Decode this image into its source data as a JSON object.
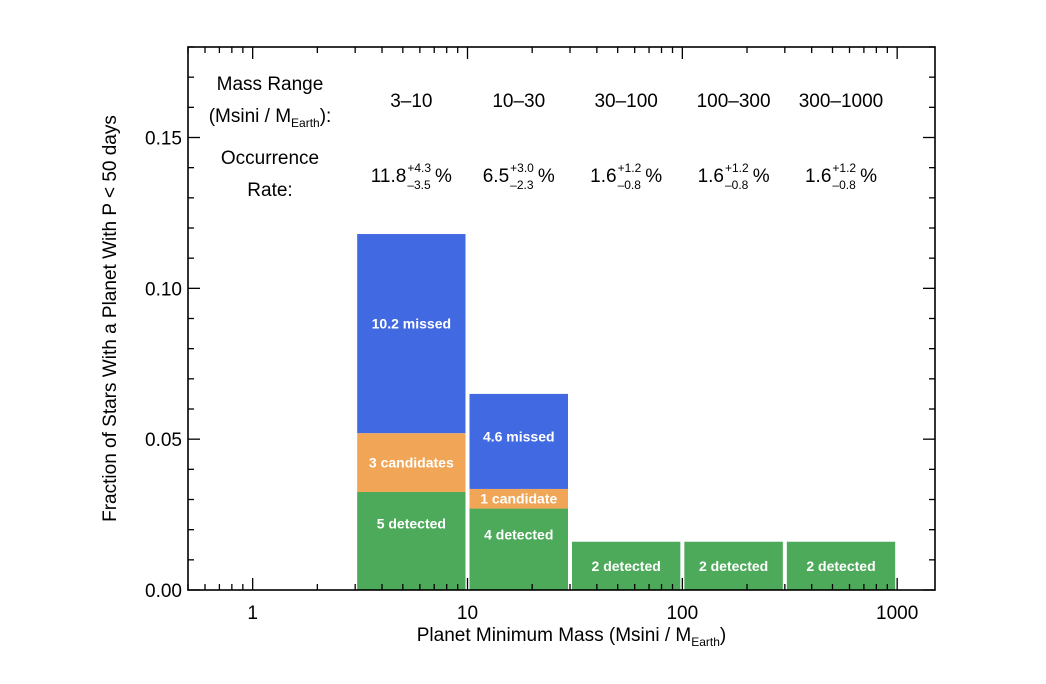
{
  "chart_data": {
    "type": "bar",
    "xscale": "log",
    "xlim": [
      0.5,
      1500
    ],
    "ylim": [
      0,
      0.18
    ],
    "xticks": [
      1,
      10,
      100,
      1000
    ],
    "xtick_labels": [
      "1",
      "10",
      "100",
      "1000"
    ],
    "yticks": [
      0,
      0.05,
      0.1,
      0.15
    ],
    "ytick_labels": [
      "0.00",
      "0.05",
      "0.10",
      "0.15"
    ],
    "xlabel": "Planet Minimum Mass  (Msini / M",
    "xlabel_sub": "Earth",
    "xlabel_end": ")",
    "ylabel": "Fraction of Stars With a Planet With P < 50 days",
    "header": {
      "mass_range_line1": "Mass Range",
      "mass_range_line2": "(Msini / M",
      "mass_range_sub": "Earth",
      "mass_range_end": "):",
      "occurrence_line1": "Occurrence",
      "occurrence_line2": "Rate:"
    },
    "series": [
      {
        "name": "detected",
        "color": "#4daa5a"
      },
      {
        "name": "candidates",
        "color": "#f0a656"
      },
      {
        "name": "missed",
        "color": "#4169e1"
      }
    ],
    "bins": [
      {
        "range_label": "3–10",
        "x0": 3,
        "x1": 10,
        "rate": "11.8",
        "rate_plus": "+4.3",
        "rate_minus": "–3.5",
        "pct": "%",
        "segments": [
          {
            "series": "detected",
            "y0": 0,
            "y1": 0.0325,
            "label": "5 detected"
          },
          {
            "series": "candidates",
            "y0": 0.0325,
            "y1": 0.052,
            "label": "3 candidates"
          },
          {
            "series": "missed",
            "y0": 0.052,
            "y1": 0.118,
            "label": "10.2 missed"
          }
        ]
      },
      {
        "range_label": "10–30",
        "x0": 10,
        "x1": 30,
        "rate": "6.5",
        "rate_plus": "+3.0",
        "rate_minus": "–2.3",
        "pct": "%",
        "segments": [
          {
            "series": "detected",
            "y0": 0,
            "y1": 0.027,
            "label": "4 detected"
          },
          {
            "series": "candidates",
            "y0": 0.027,
            "y1": 0.0335,
            "label": "1 candidate"
          },
          {
            "series": "missed",
            "y0": 0.0335,
            "y1": 0.065,
            "label": "4.6 missed"
          }
        ]
      },
      {
        "range_label": "30–100",
        "x0": 30,
        "x1": 100,
        "rate": "1.6",
        "rate_plus": "+1.2",
        "rate_minus": "–0.8",
        "pct": "%",
        "segments": [
          {
            "series": "detected",
            "y0": 0,
            "y1": 0.016,
            "label": "2 detected"
          }
        ]
      },
      {
        "range_label": "100–300",
        "x0": 100,
        "x1": 300,
        "rate": "1.6",
        "rate_plus": "+1.2",
        "rate_minus": "–0.8",
        "pct": "%",
        "segments": [
          {
            "series": "detected",
            "y0": 0,
            "y1": 0.016,
            "label": "2 detected"
          }
        ]
      },
      {
        "range_label": "300–1000",
        "x0": 300,
        "x1": 1000,
        "rate": "1.6",
        "rate_plus": "+1.2",
        "rate_minus": "–0.8",
        "pct": "%",
        "segments": [
          {
            "series": "detected",
            "y0": 0,
            "y1": 0.016,
            "label": "2 detected"
          }
        ]
      }
    ],
    "grid": false,
    "legend": "none"
  }
}
